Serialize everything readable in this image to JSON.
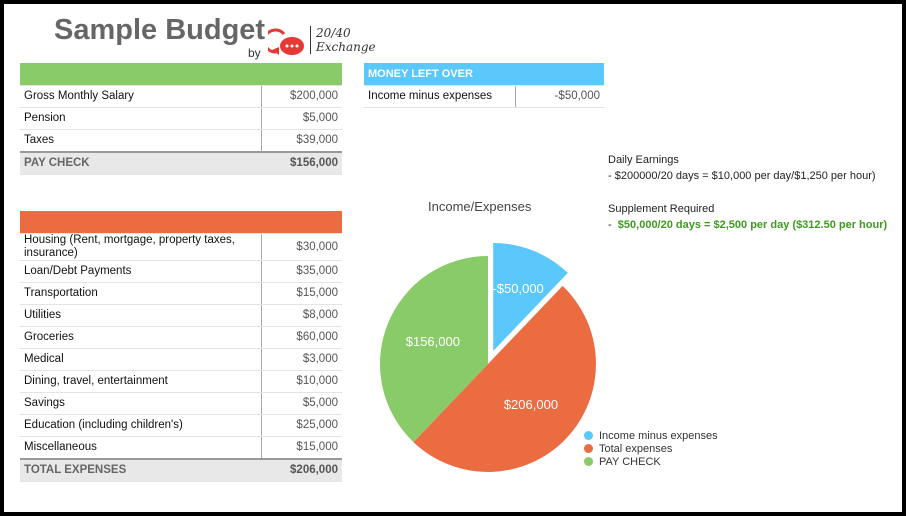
{
  "header": {
    "title": "Sample Budget",
    "by": "by",
    "logo_text_1": "20/40",
    "logo_text_2": "Exchange"
  },
  "income": {
    "header_color": "#8acb69",
    "rows": [
      {
        "label": "Gross Monthly Salary",
        "value": "$200,000"
      },
      {
        "label": "Pension",
        "value": "$5,000"
      },
      {
        "label": "Taxes",
        "value": "$39,000"
      }
    ],
    "total": {
      "label": "PAY CHECK",
      "value": "$156,000"
    }
  },
  "expenses": {
    "header_color": "#ec6c42",
    "rows": [
      {
        "label": "Housing (Rent, mortgage, property taxes, insurance)",
        "value": "$30,000"
      },
      {
        "label": "Loan/Debt Payments",
        "value": "$35,000"
      },
      {
        "label": "Transportation",
        "value": "$15,000"
      },
      {
        "label": "Utilities",
        "value": "$8,000"
      },
      {
        "label": "Groceries",
        "value": "$60,000"
      },
      {
        "label": "Medical",
        "value": "$3,000"
      },
      {
        "label": "Dining, travel, entertainment",
        "value": "$10,000"
      },
      {
        "label": "Savings",
        "value": "$5,000"
      },
      {
        "label": "Education (including children's)",
        "value": "$25,000"
      },
      {
        "label": "Miscellaneous",
        "value": "$15,000"
      }
    ],
    "total": {
      "label": "TOTAL EXPENSES",
      "value": "$206,000"
    }
  },
  "money_left": {
    "title": "MONEY LEFT OVER",
    "label": "Income minus expenses",
    "value": "-$50,000"
  },
  "notes": {
    "daily_title": "Daily Earnings",
    "daily_text": "-  $200000/20 days = $10,000 per day/$1,250 per hour)",
    "supp_title": "Supplement Required",
    "supp_text": "$50,000/20 days = $2,500 per day ($312.50 per hour)",
    "supp_dash": "-"
  },
  "chart_data": {
    "type": "pie",
    "title": "Income/Expenses",
    "slices": [
      {
        "name": "Income minus expenses",
        "value": 50000,
        "label": "-$50,000",
        "color": "#5ac8fa",
        "exploded": true
      },
      {
        "name": "Total expenses",
        "value": 206000,
        "label": "$206,000",
        "color": "#ec6c42"
      },
      {
        "name": "PAY CHECK",
        "value": 156000,
        "label": "$156,000",
        "color": "#8acb69"
      }
    ],
    "legend": "bottom-right"
  }
}
